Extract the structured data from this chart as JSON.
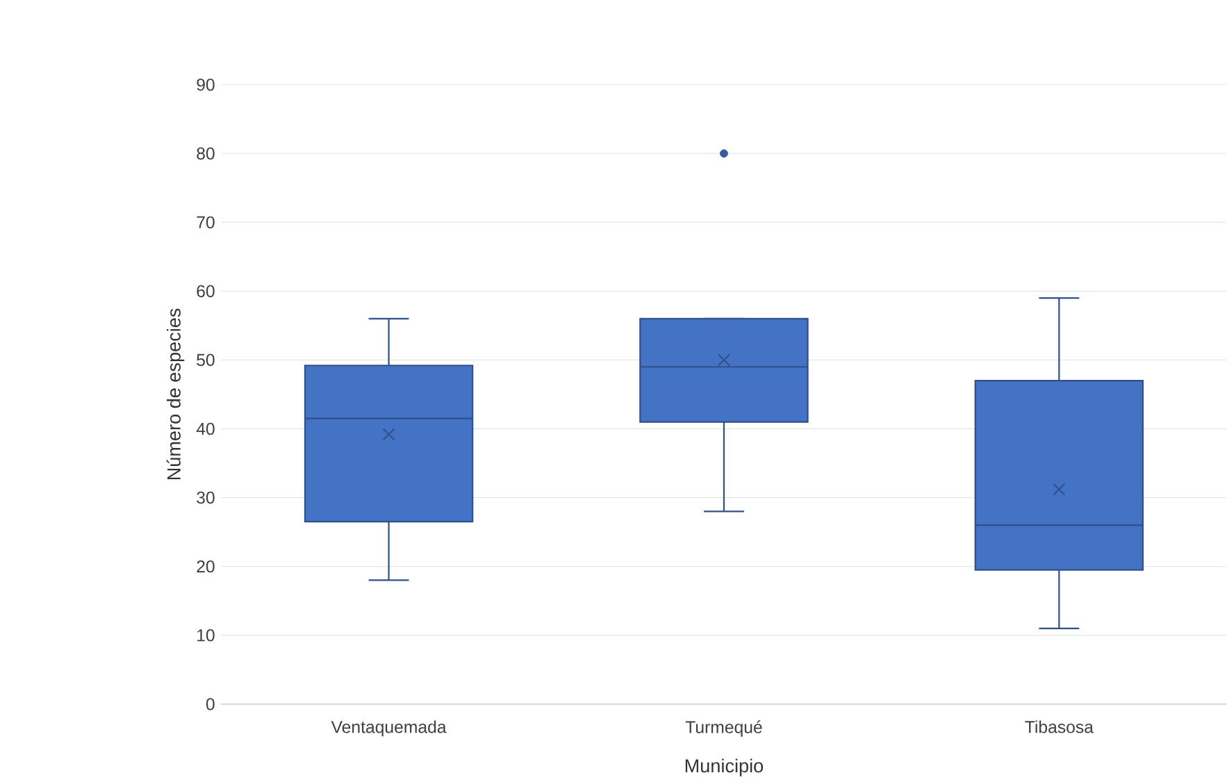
{
  "chart_data": {
    "type": "box",
    "xlabel": "Municipio",
    "ylabel": "Número de especies",
    "categories": [
      "Ventaquemada",
      "Turmequé",
      "Tibasosa"
    ],
    "boxes": [
      {
        "low": 18,
        "q1": 26.5,
        "median": 41.5,
        "q3": 49.2,
        "high": 56,
        "mean": 39.2
      },
      {
        "low": 28,
        "q1": 41,
        "median": 49,
        "q3": 56,
        "high": 56,
        "mean": 50,
        "outliers": [
          80
        ]
      },
      {
        "low": 11,
        "q1": 19.5,
        "median": 26,
        "q3": 47,
        "high": 59,
        "mean": 31.2
      }
    ],
    "color": "#4472c4",
    "ylim": [
      0,
      90
    ],
    "yticks": [
      0,
      10,
      20,
      30,
      40,
      50,
      60,
      70,
      80,
      90
    ],
    "grid": "y"
  }
}
